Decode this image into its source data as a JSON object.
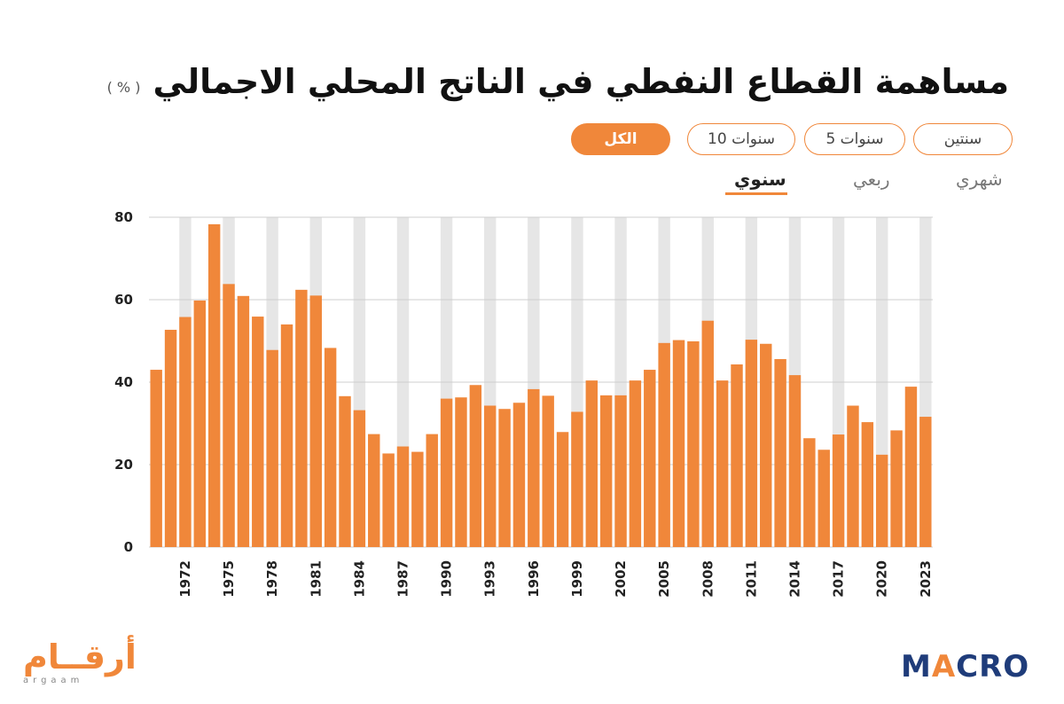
{
  "header": {
    "title": "مساهمة القطاع النفطي في الناتج المحلي الاجمالي",
    "unit": "( % )"
  },
  "range_buttons": [
    {
      "label": "سنتين",
      "active": false
    },
    {
      "label": "5 سنوات",
      "active": false
    },
    {
      "label": "10 سنوات",
      "active": false
    },
    {
      "label": "الكل",
      "active": true
    }
  ],
  "frequency_tabs": [
    {
      "label": "شهري",
      "active": false
    },
    {
      "label": "ربعي",
      "active": false
    },
    {
      "label": "سنوي",
      "active": true
    }
  ],
  "colors": {
    "bar": "#f0873a",
    "stripe": "#e6e6e6",
    "grid": "#cfcfcf",
    "accent": "#f0873a",
    "macro_blue": "#1f3c7a"
  },
  "chart_data": {
    "type": "bar",
    "x": [
      1970,
      1971,
      1972,
      1973,
      1974,
      1975,
      1976,
      1977,
      1978,
      1979,
      1980,
      1981,
      1982,
      1983,
      1984,
      1985,
      1986,
      1987,
      1988,
      1989,
      1990,
      1991,
      1992,
      1993,
      1994,
      1995,
      1996,
      1997,
      1998,
      1999,
      2000,
      2001,
      2002,
      2003,
      2004,
      2005,
      2006,
      2007,
      2008,
      2009,
      2010,
      2011,
      2012,
      2013,
      2014,
      2015,
      2016,
      2017,
      2018,
      2019,
      2020,
      2021,
      2022,
      2023
    ],
    "values": [
      43,
      52.7,
      55.8,
      59.8,
      78.3,
      63.8,
      60.9,
      55.9,
      47.8,
      54,
      62.4,
      61,
      48.3,
      36.6,
      33.2,
      27.4,
      22.7,
      24.4,
      23.1,
      27.4,
      36,
      36.3,
      39.3,
      34.3,
      33.5,
      35,
      38.3,
      36.7,
      27.9,
      32.8,
      40.4,
      36.8,
      36.8,
      40.4,
      43,
      49.5,
      50.2,
      49.9,
      54.9,
      40.4,
      44.3,
      50.3,
      49.3,
      45.6,
      41.7,
      26.4,
      23.6,
      27.3,
      34.3,
      30.3,
      22.4,
      28.3,
      38.9,
      31.6
    ],
    "tick_labels": [
      "1972",
      "1975",
      "1978",
      "1981",
      "1984",
      "1987",
      "1990",
      "1993",
      "1996",
      "1999",
      "2002",
      "2005",
      "2008",
      "2011",
      "2014",
      "2017",
      "2020",
      "2023"
    ],
    "y_ticks": [
      0,
      20,
      40,
      60,
      80
    ],
    "ylim": [
      0,
      80
    ],
    "grid": true,
    "legend": "none"
  },
  "branding": {
    "argaam_ar": "أرقــام",
    "argaam_lat": "argaam",
    "macro_m": "M",
    "macro_a": "A",
    "macro_rest": "CRO"
  }
}
